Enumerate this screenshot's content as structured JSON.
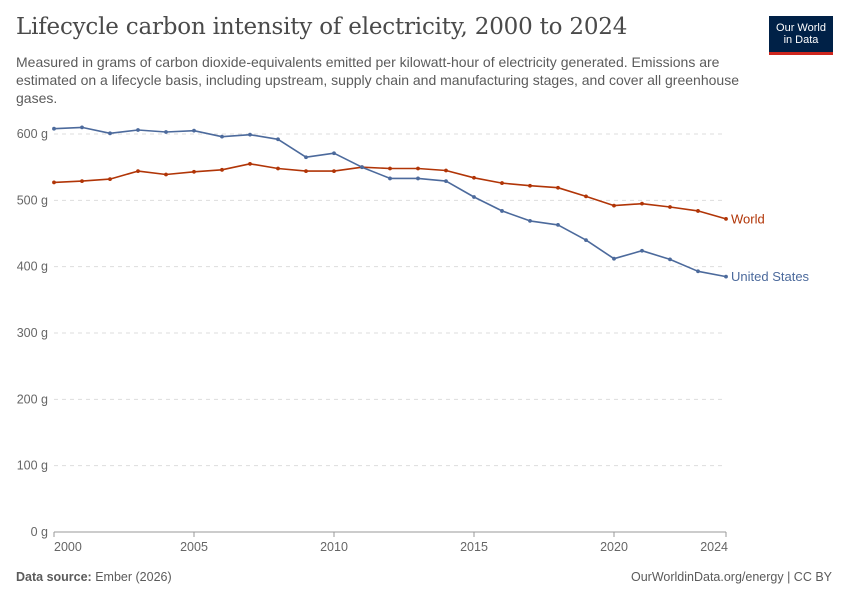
{
  "header": {
    "title": "Lifecycle carbon intensity of electricity, 2000 to 2024",
    "subtitle": "Measured in grams of carbon dioxide-equivalents emitted per kilowatt-hour of electricity generated. Emissions are estimated on a lifecycle basis, including upstream, supply chain and manufacturing stages, and cover all greenhouse gases."
  },
  "logo": {
    "line1": "Our World",
    "line2": "in Data"
  },
  "footer": {
    "source_label": "Data source:",
    "source_value": "Ember (2026)",
    "credit": "OurWorldinData.org/energy | CC BY"
  },
  "chart_data": {
    "type": "line",
    "title": "Lifecycle carbon intensity of electricity, 2000 to 2024",
    "x": [
      2000,
      2001,
      2002,
      2003,
      2004,
      2005,
      2006,
      2007,
      2008,
      2009,
      2010,
      2011,
      2012,
      2013,
      2014,
      2015,
      2016,
      2017,
      2018,
      2019,
      2020,
      2021,
      2022,
      2023,
      2024
    ],
    "xlim": [
      2000,
      2024
    ],
    "x_ticks": [
      "2000",
      "2005",
      "2010",
      "2015",
      "2020",
      "2024"
    ],
    "ylim": [
      0,
      600
    ],
    "y_ticks": [
      "0 g",
      "100 g",
      "200 g",
      "300 g",
      "400 g",
      "500 g",
      "600 g"
    ],
    "grid": "horizontal dashed",
    "legend": "line-end labels",
    "series": [
      {
        "name": "World",
        "color": "#b13507",
        "values": [
          527,
          529,
          532,
          544,
          539,
          543,
          546,
          555,
          548,
          544,
          544,
          550,
          548,
          548,
          545,
          534,
          526,
          522,
          519,
          506,
          492,
          495,
          490,
          484,
          472
        ]
      },
      {
        "name": "United States",
        "color": "#4c6a9c",
        "values": [
          608,
          610,
          601,
          606,
          603,
          605,
          596,
          599,
          592,
          565,
          571,
          550,
          533,
          533,
          529,
          505,
          484,
          469,
          463,
          440,
          412,
          424,
          411,
          393,
          385
        ]
      }
    ]
  }
}
